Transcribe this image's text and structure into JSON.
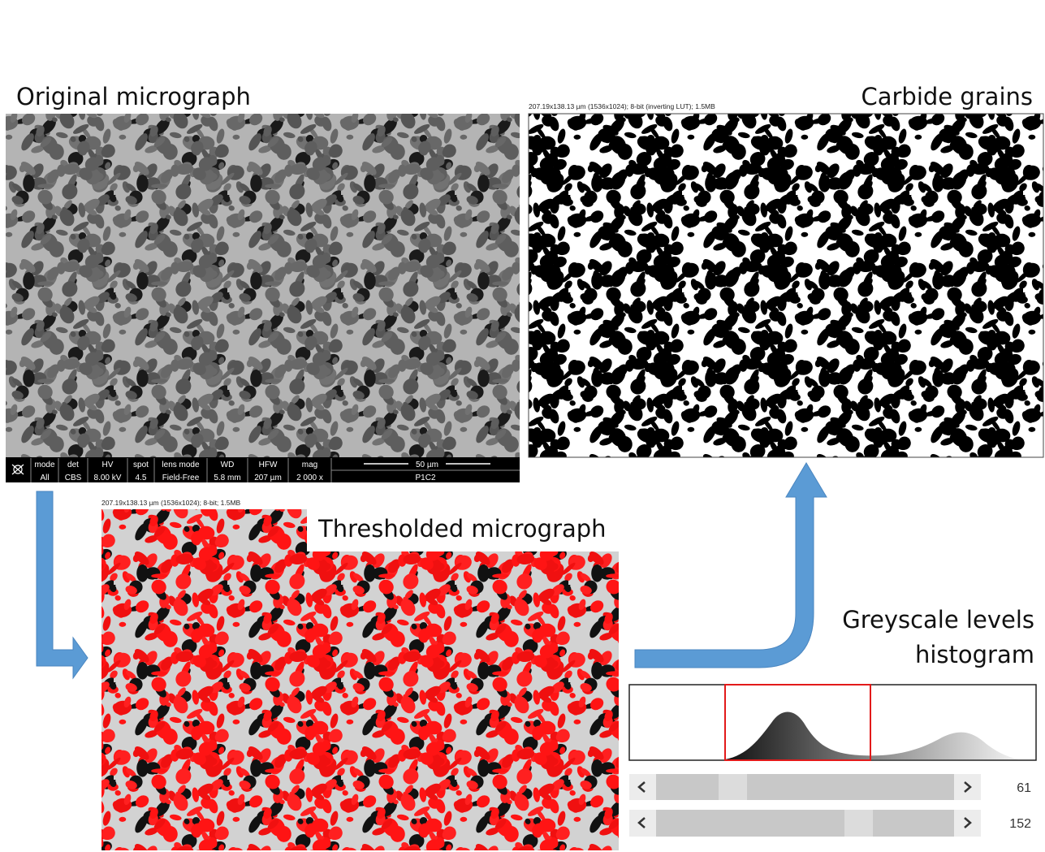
{
  "titles": {
    "original": "Original micrograph",
    "carbide": "Carbide grains",
    "thresholded": "Thresholded micrograph",
    "histogram": [
      "Greyscale levels",
      "histogram"
    ]
  },
  "image_headers": {
    "carbide": "207.19x138.13 µm (1536x1024); 8-bit (inverting LUT); 1.5MB",
    "thresholded": "207.19x138.13 µm (1536x1024); 8-bit; 1.5MB"
  },
  "sem_bar": {
    "fields": [
      {
        "label": "mode",
        "value": "All"
      },
      {
        "label": "det",
        "value": "CBS"
      },
      {
        "label": "HV",
        "value": "8.00 kV"
      },
      {
        "label": "spot",
        "value": "4.5"
      },
      {
        "label": "lens mode",
        "value": "Field-Free"
      },
      {
        "label": "WD",
        "value": "5.8 mm"
      },
      {
        "label": "HFW",
        "value": "207 µm"
      },
      {
        "label": "mag",
        "value": "2 000 x"
      }
    ],
    "scale": "50 µm",
    "sample": "P1C2"
  },
  "histogram": {
    "sliders": [
      {
        "value": 61
      },
      {
        "value": 152
      }
    ]
  }
}
